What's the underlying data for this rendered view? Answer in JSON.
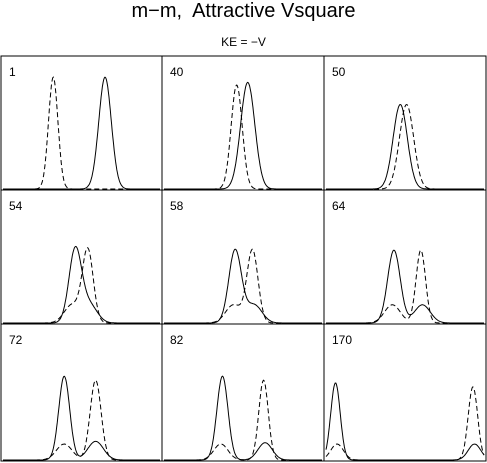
{
  "title": "m−m,  Attractive Vsquare",
  "subtitle": "KE = −V",
  "chart_data": {
    "type": "line",
    "title": "m−m,  Attractive Vsquare",
    "subtitle": "KE = −V",
    "layout": "3x3 panels",
    "xlabel": "",
    "ylabel": "",
    "series_styles": {
      "solid": "solid line",
      "dashed": "dashed line"
    },
    "panels": [
      {
        "label": "1",
        "solid": [
          {
            "c": 0.65,
            "w": 0.04,
            "h": 0.86
          }
        ],
        "dashed": [
          {
            "c": 0.32,
            "w": 0.03,
            "h": 0.86
          }
        ]
      },
      {
        "label": "40",
        "solid": [
          {
            "c": 0.53,
            "w": 0.045,
            "h": 0.82
          }
        ],
        "dashed": [
          {
            "c": 0.46,
            "w": 0.035,
            "h": 0.8
          }
        ]
      },
      {
        "label": "50",
        "solid": [
          {
            "c": 0.47,
            "w": 0.045,
            "h": 0.65
          }
        ],
        "dashed": [
          {
            "c": 0.51,
            "w": 0.045,
            "h": 0.65
          }
        ]
      },
      {
        "label": "54",
        "solid": [
          {
            "c": 0.46,
            "w": 0.04,
            "h": 0.56
          },
          {
            "c": 0.55,
            "w": 0.05,
            "h": 0.14
          }
        ],
        "dashed": [
          {
            "c": 0.54,
            "w": 0.035,
            "h": 0.56
          },
          {
            "c": 0.44,
            "w": 0.05,
            "h": 0.14
          }
        ]
      },
      {
        "label": "58",
        "solid": [
          {
            "c": 0.45,
            "w": 0.04,
            "h": 0.56
          },
          {
            "c": 0.57,
            "w": 0.05,
            "h": 0.14
          }
        ],
        "dashed": [
          {
            "c": 0.56,
            "w": 0.035,
            "h": 0.56
          },
          {
            "c": 0.44,
            "w": 0.05,
            "h": 0.14
          }
        ]
      },
      {
        "label": "64",
        "solid": [
          {
            "c": 0.43,
            "w": 0.04,
            "h": 0.56
          },
          {
            "c": 0.61,
            "w": 0.05,
            "h": 0.14
          }
        ],
        "dashed": [
          {
            "c": 0.6,
            "w": 0.03,
            "h": 0.56
          },
          {
            "c": 0.42,
            "w": 0.05,
            "h": 0.14
          }
        ]
      },
      {
        "label": "72",
        "solid": [
          {
            "c": 0.39,
            "w": 0.035,
            "h": 0.63
          },
          {
            "c": 0.59,
            "w": 0.05,
            "h": 0.14
          }
        ],
        "dashed": [
          {
            "c": 0.59,
            "w": 0.035,
            "h": 0.6
          },
          {
            "c": 0.39,
            "w": 0.05,
            "h": 0.12
          }
        ]
      },
      {
        "label": "82",
        "solid": [
          {
            "c": 0.37,
            "w": 0.035,
            "h": 0.63
          },
          {
            "c": 0.64,
            "w": 0.045,
            "h": 0.13
          }
        ],
        "dashed": [
          {
            "c": 0.63,
            "w": 0.03,
            "h": 0.6
          },
          {
            "c": 0.36,
            "w": 0.045,
            "h": 0.12
          }
        ]
      },
      {
        "label": "170",
        "solid": [
          {
            "c": 0.06,
            "w": 0.03,
            "h": 0.58
          },
          {
            "c": 0.94,
            "w": 0.04,
            "h": 0.12
          }
        ],
        "dashed": [
          {
            "c": 0.93,
            "w": 0.03,
            "h": 0.55
          },
          {
            "c": 0.07,
            "w": 0.04,
            "h": 0.12
          }
        ]
      }
    ]
  }
}
